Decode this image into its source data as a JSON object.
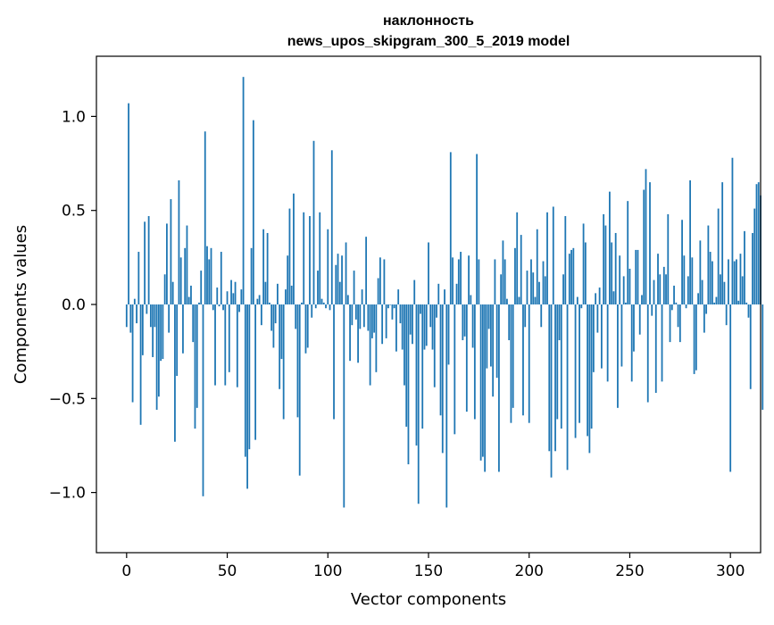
{
  "chart_data": {
    "type": "bar",
    "title_line1": "наклонность",
    "title_line2": "news_upos_skipgram_300_5_2019 model",
    "xlabel": "Vector components",
    "ylabel": "Components values",
    "xlim": [
      -15,
      315
    ],
    "ylim": [
      -1.32,
      1.32
    ],
    "xticks": [
      0,
      50,
      100,
      150,
      200,
      250,
      300
    ],
    "xtick_labels": [
      "0",
      "50",
      "100",
      "150",
      "200",
      "250",
      "300"
    ],
    "yticks": [
      -1.0,
      -0.5,
      0.0,
      0.5,
      1.0
    ],
    "ytick_labels": [
      "−1.0",
      "−0.5",
      "0.0",
      "0.5",
      "1.0"
    ],
    "grid": false,
    "bar_color": "#1f77b4",
    "values": [
      -0.12,
      1.07,
      -0.15,
      -0.52,
      0.03,
      -0.1,
      0.28,
      -0.64,
      -0.27,
      0.44,
      -0.05,
      0.47,
      -0.12,
      -0.28,
      -0.12,
      -0.56,
      -0.49,
      -0.3,
      -0.29,
      0.16,
      0.43,
      -0.15,
      0.56,
      0.12,
      -0.73,
      -0.38,
      0.66,
      0.25,
      -0.26,
      0.3,
      0.42,
      0.04,
      0.1,
      -0.2,
      -0.66,
      -0.55,
      0.01,
      0.18,
      -1.02,
      0.92,
      0.31,
      0.24,
      0.3,
      -0.03,
      -0.43,
      0.09,
      -0.01,
      0.28,
      -0.03,
      -0.43,
      0.07,
      -0.36,
      0.13,
      0.06,
      0.12,
      -0.44,
      -0.04,
      0.08,
      1.21,
      -0.81,
      -0.98,
      -0.77,
      0.3,
      0.98,
      -0.72,
      0.03,
      0.05,
      -0.11,
      0.4,
      0.12,
      0.38,
      0.01,
      -0.14,
      -0.23,
      -0.1,
      0.11,
      -0.45,
      -0.29,
      -0.61,
      0.08,
      0.26,
      0.51,
      0.1,
      0.59,
      -0.13,
      -0.6,
      -0.91,
      0.01,
      0.49,
      -0.26,
      -0.23,
      0.47,
      -0.07,
      0.87,
      -0.02,
      0.18,
      0.49,
      0.03,
      0.01,
      -0.02,
      0.4,
      -0.03,
      0.82,
      -0.61,
      0.21,
      0.27,
      0.12,
      0.26,
      -1.08,
      0.33,
      0.05,
      -0.3,
      -0.11,
      0.18,
      -0.08,
      -0.31,
      -0.13,
      0.08,
      -0.12,
      0.36,
      -0.14,
      -0.43,
      -0.18,
      -0.15,
      -0.36,
      0.14,
      0.25,
      -0.21,
      0.24,
      -0.18,
      -0.02,
      0.0,
      -0.08,
      -0.02,
      -0.25,
      0.08,
      -0.1,
      -0.24,
      -0.43,
      -0.65,
      -0.85,
      -0.16,
      -0.21,
      0.13,
      -0.75,
      -1.06,
      -0.05,
      -0.66,
      -0.24,
      -0.22,
      0.33,
      -0.12,
      -0.24,
      -0.44,
      -0.07,
      0.11,
      -0.59,
      -0.79,
      0.08,
      -1.08,
      -0.32,
      0.81,
      0.25,
      -0.69,
      0.11,
      0.24,
      0.28,
      -0.19,
      -0.17,
      -0.57,
      0.26,
      0.05,
      -0.23,
      -0.61,
      0.8,
      0.24,
      -0.83,
      -0.81,
      -0.89,
      -0.34,
      -0.13,
      -0.33,
      -0.49,
      0.24,
      -0.39,
      -0.89,
      0.16,
      0.34,
      0.24,
      0.03,
      -0.19,
      -0.63,
      -0.55,
      0.3,
      0.49,
      0.04,
      0.37,
      -0.59,
      -0.12,
      0.18,
      -0.63,
      0.24,
      0.17,
      0.04,
      0.4,
      0.12,
      -0.12,
      0.23,
      0.15,
      0.49,
      -0.78,
      -0.92,
      0.52,
      -0.78,
      -0.61,
      -0.19,
      -0.66,
      0.16,
      0.47,
      -0.88,
      0.27,
      0.29,
      0.3,
      -0.71,
      0.04,
      -0.63,
      -0.02,
      0.43,
      0.33,
      -0.7,
      -0.79,
      -0.66,
      -0.36,
      0.06,
      -0.15,
      0.09,
      -0.34,
      0.48,
      0.42,
      -0.41,
      0.6,
      0.33,
      0.07,
      0.38,
      -0.55,
      0.26,
      -0.33,
      0.15,
      0.01,
      0.55,
      0.19,
      -0.41,
      -0.25,
      0.29,
      0.29,
      -0.16,
      0.05,
      0.61,
      0.72,
      -0.52,
      0.65,
      -0.06,
      0.13,
      -0.47,
      0.27,
      0.16,
      -0.41,
      0.2,
      0.16,
      0.48,
      -0.2,
      -0.03,
      0.1,
      0.01,
      -0.12,
      -0.2,
      0.45,
      0.26,
      -0.02,
      0.15,
      0.66,
      0.25,
      -0.37,
      -0.35,
      0.06,
      0.34,
      0.13,
      -0.15,
      -0.05,
      0.42,
      0.28,
      0.23,
      0.01,
      0.04,
      0.51,
      0.16,
      0.65,
      0.12,
      -0.11,
      0.24,
      -0.89,
      0.78,
      0.23,
      0.24,
      0.02,
      0.27,
      0.15,
      0.39,
      0.01,
      -0.07,
      -0.45,
      0.38,
      0.51,
      0.64,
      0.65,
      0.58,
      -0.56
    ]
  }
}
